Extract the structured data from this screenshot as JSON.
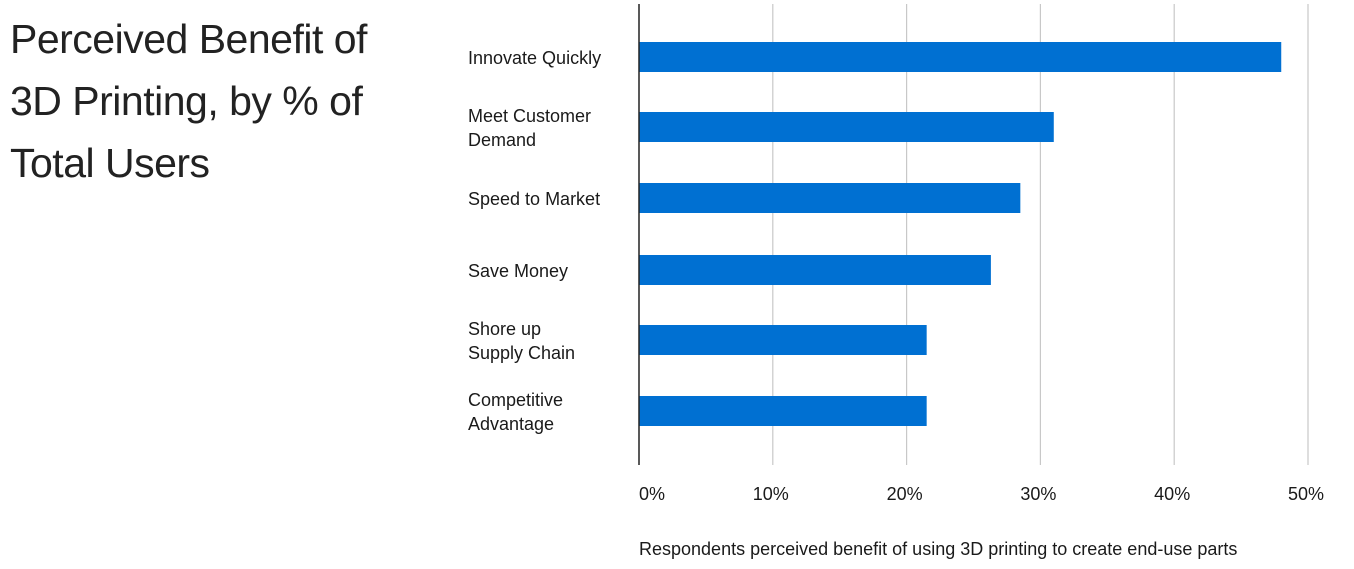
{
  "chart_data": {
    "type": "bar",
    "orientation": "horizontal",
    "title": "Perceived Benefit of 3D Printing, by % of Total Users",
    "title_lines": [
      "Perceived Benefit of",
      "3D Printing, by % of",
      "Total Users"
    ],
    "xlabel": "Respondents perceived benefit of using 3D printing to create end-use parts",
    "ylabel": "",
    "categories": [
      [
        "Innovate Quickly"
      ],
      [
        "Meet Customer",
        "Demand"
      ],
      [
        "Speed to Market"
      ],
      [
        "Save Money"
      ],
      [
        "Shore up",
        "Supply Chain"
      ],
      [
        "Competitive",
        "Advantage"
      ]
    ],
    "values": [
      48,
      31,
      28.5,
      26.3,
      21.5,
      21.5
    ],
    "xlim": [
      0,
      50
    ],
    "xticks": [
      0,
      10,
      20,
      30,
      40,
      50
    ],
    "xtick_labels": [
      "0%",
      "10%",
      "20%",
      "30%",
      "40%",
      "50%"
    ],
    "grid": true,
    "bar_color": "#0070d2",
    "grid_color": "#c8c8c8",
    "axis_color": "#222222"
  }
}
